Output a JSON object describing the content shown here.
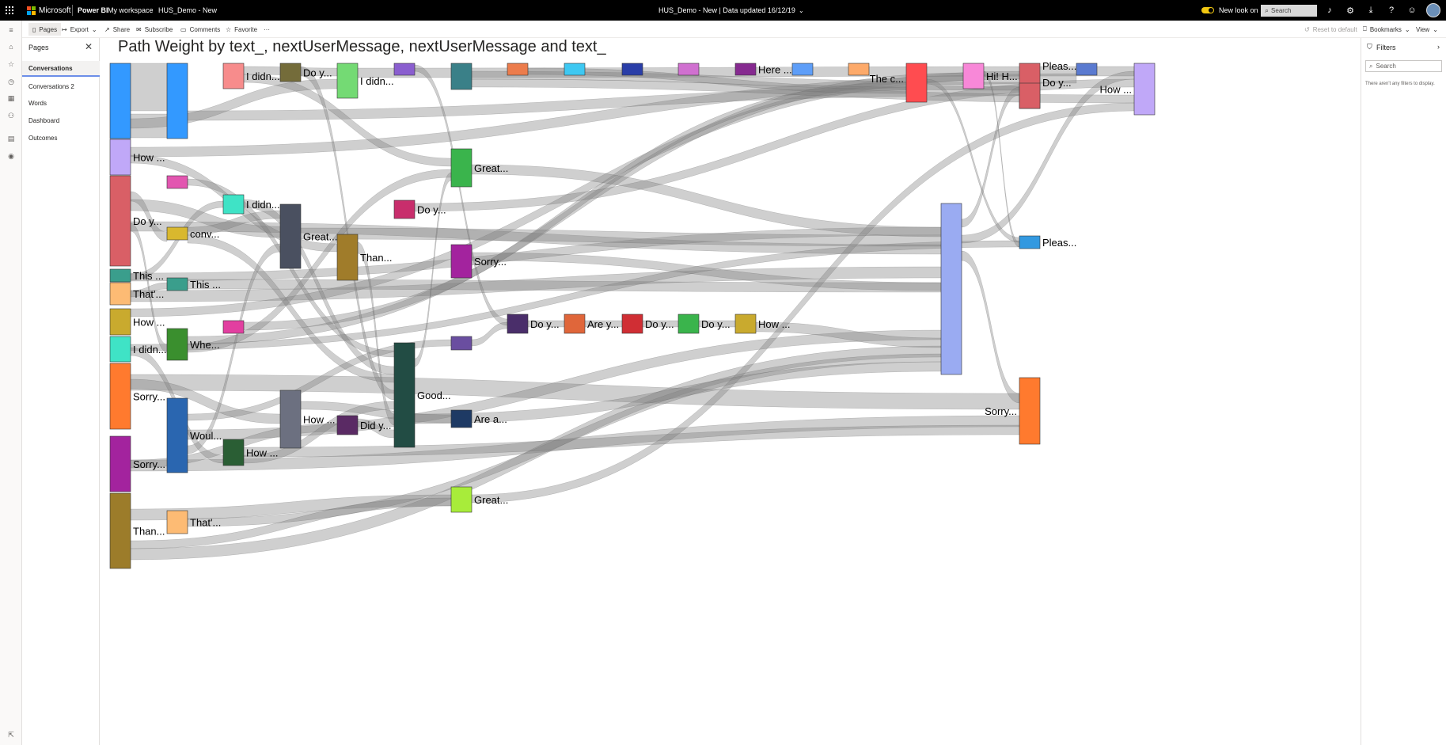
{
  "topbar": {
    "brand": "Microsoft",
    "product": "Power BI",
    "breadcrumb_workspace": "My workspace",
    "breadcrumb_report": "HUS_Demo - New",
    "center_title": "HUS_Demo - New  |  Data updated 16/12/19",
    "new_look": "New look on",
    "search_placeholder": "Search"
  },
  "cmdbar": {
    "pages": "Pages",
    "export": "Export",
    "share": "Share",
    "subscribe": "Subscribe",
    "comments": "Comments",
    "favorite": "Favorite",
    "more": "···",
    "reset": "Reset to default",
    "bookmarks": "Bookmarks",
    "view": "View"
  },
  "pages_pane": {
    "title": "Pages",
    "items": [
      "Conversations",
      "Conversations 2",
      "Words",
      "Dashboard",
      "Outcomes"
    ],
    "active": "Conversations"
  },
  "filters_pane": {
    "title": "Filters",
    "search_placeholder": "Search",
    "empty": "There aren't any filters to display."
  },
  "chart_data": {
    "type": "sankey",
    "title": "Path Weight by text_, nextUserMessage, nextUserMessage and text_",
    "nodes": [
      {
        "label": "",
        "color": "#3399ff"
      },
      {
        "label": "How ...",
        "color": "#c0a8f8"
      },
      {
        "label": "Do y...",
        "color": "#d95f66"
      },
      {
        "label": "This ...",
        "color": "#3a9e8c"
      },
      {
        "label": "That'...",
        "color": "#fdbb74"
      },
      {
        "label": "How ...",
        "color": "#c9aa2e"
      },
      {
        "label": "I didn...",
        "color": "#3fe3c6"
      },
      {
        "label": "Sorry...",
        "color": "#ff7a2e"
      },
      {
        "label": "Sorry...",
        "color": "#a3239e"
      },
      {
        "label": "Than...",
        "color": "#9c7c2a"
      },
      {
        "label": "",
        "color": "#3399ff"
      },
      {
        "label": "",
        "color": "#e256b0"
      },
      {
        "label": "conv...",
        "color": "#d9b82e"
      },
      {
        "label": "This ...",
        "color": "#3a9e8c"
      },
      {
        "label": "Whe...",
        "color": "#3a8f2e"
      },
      {
        "label": "Woul...",
        "color": "#2a66b0"
      },
      {
        "label": "That'...",
        "color": "#fdbb74"
      },
      {
        "label": "I didn...",
        "color": "#f78c8c"
      },
      {
        "label": "I didn...",
        "color": "#3fe3c6"
      },
      {
        "label": "",
        "color": "#e23fa0"
      },
      {
        "label": "How ...",
        "color": "#2a5e34"
      },
      {
        "label": "Do y...",
        "color": "#746c3a"
      },
      {
        "label": "Great...",
        "color": "#4a5060"
      },
      {
        "label": "How ...",
        "color": "#6c7080"
      },
      {
        "label": "I didn...",
        "color": "#74da74"
      },
      {
        "label": "Than...",
        "color": "#a07c2a"
      },
      {
        "label": "Did y...",
        "color": "#5a2a64"
      },
      {
        "label": "",
        "color": "#8a5ecf"
      },
      {
        "label": "Do y...",
        "color": "#c82e6c"
      },
      {
        "label": "Good...",
        "color": "#224c44"
      },
      {
        "label": "",
        "color": "#3a8088"
      },
      {
        "label": "Great...",
        "color": "#3ab44c"
      },
      {
        "label": "Sorry...",
        "color": "#a3239e"
      },
      {
        "label": "",
        "color": "#6a4ea0"
      },
      {
        "label": "Are a...",
        "color": "#1e3a64"
      },
      {
        "label": "Great...",
        "color": "#a8ec3a"
      },
      {
        "label": "",
        "color": "#ec7c4c"
      },
      {
        "label": "Do y...",
        "color": "#4a2e6a"
      },
      {
        "label": "",
        "color": "#3ec8f2"
      },
      {
        "label": "Are y...",
        "color": "#e0663a"
      },
      {
        "label": "",
        "color": "#2a3ea8"
      },
      {
        "label": "Do y...",
        "color": "#d02e34"
      },
      {
        "label": "",
        "color": "#d070d0"
      },
      {
        "label": "Do y...",
        "color": "#3ab44c"
      },
      {
        "label": "Here ...",
        "color": "#862a90"
      },
      {
        "label": "How ...",
        "color": "#c9aa2e"
      },
      {
        "label": "",
        "color": "#5e9ef8"
      },
      {
        "label": "",
        "color": "#fdaa6a"
      },
      {
        "label": "The c...",
        "color": "#ff4c50"
      },
      {
        "label": "",
        "color": "#9aabf2"
      },
      {
        "label": "Hi! H...",
        "color": "#f888d8"
      },
      {
        "label": "Pleas...",
        "color": "#d95f66"
      },
      {
        "label": "Do y...",
        "color": "#d95f66"
      },
      {
        "label": "Pleas...",
        "color": "#3399e0"
      },
      {
        "label": "Sorry...",
        "color": "#ff7a2e"
      },
      {
        "label": "",
        "color": "#5a7ad0"
      },
      {
        "label": "How ...",
        "color": "#c0a8f8"
      }
    ]
  }
}
